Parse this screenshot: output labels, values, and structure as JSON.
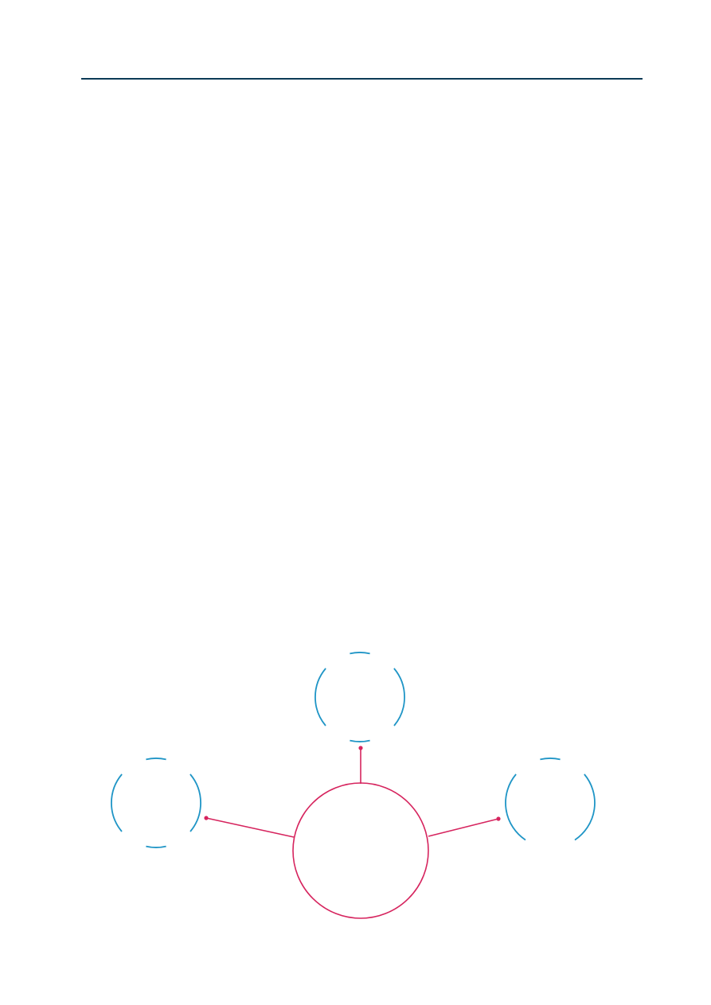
{
  "colors": {
    "header_rule": "#0b3a57",
    "hub": "#d6245e",
    "satellite": "#1f95c6",
    "background": "#ffffff"
  },
  "diagram": {
    "type": "hub-and-spoke",
    "hub_count": 1,
    "satellite_count": 3,
    "satellite_style": "broken-ring",
    "connector_end": "dot"
  }
}
